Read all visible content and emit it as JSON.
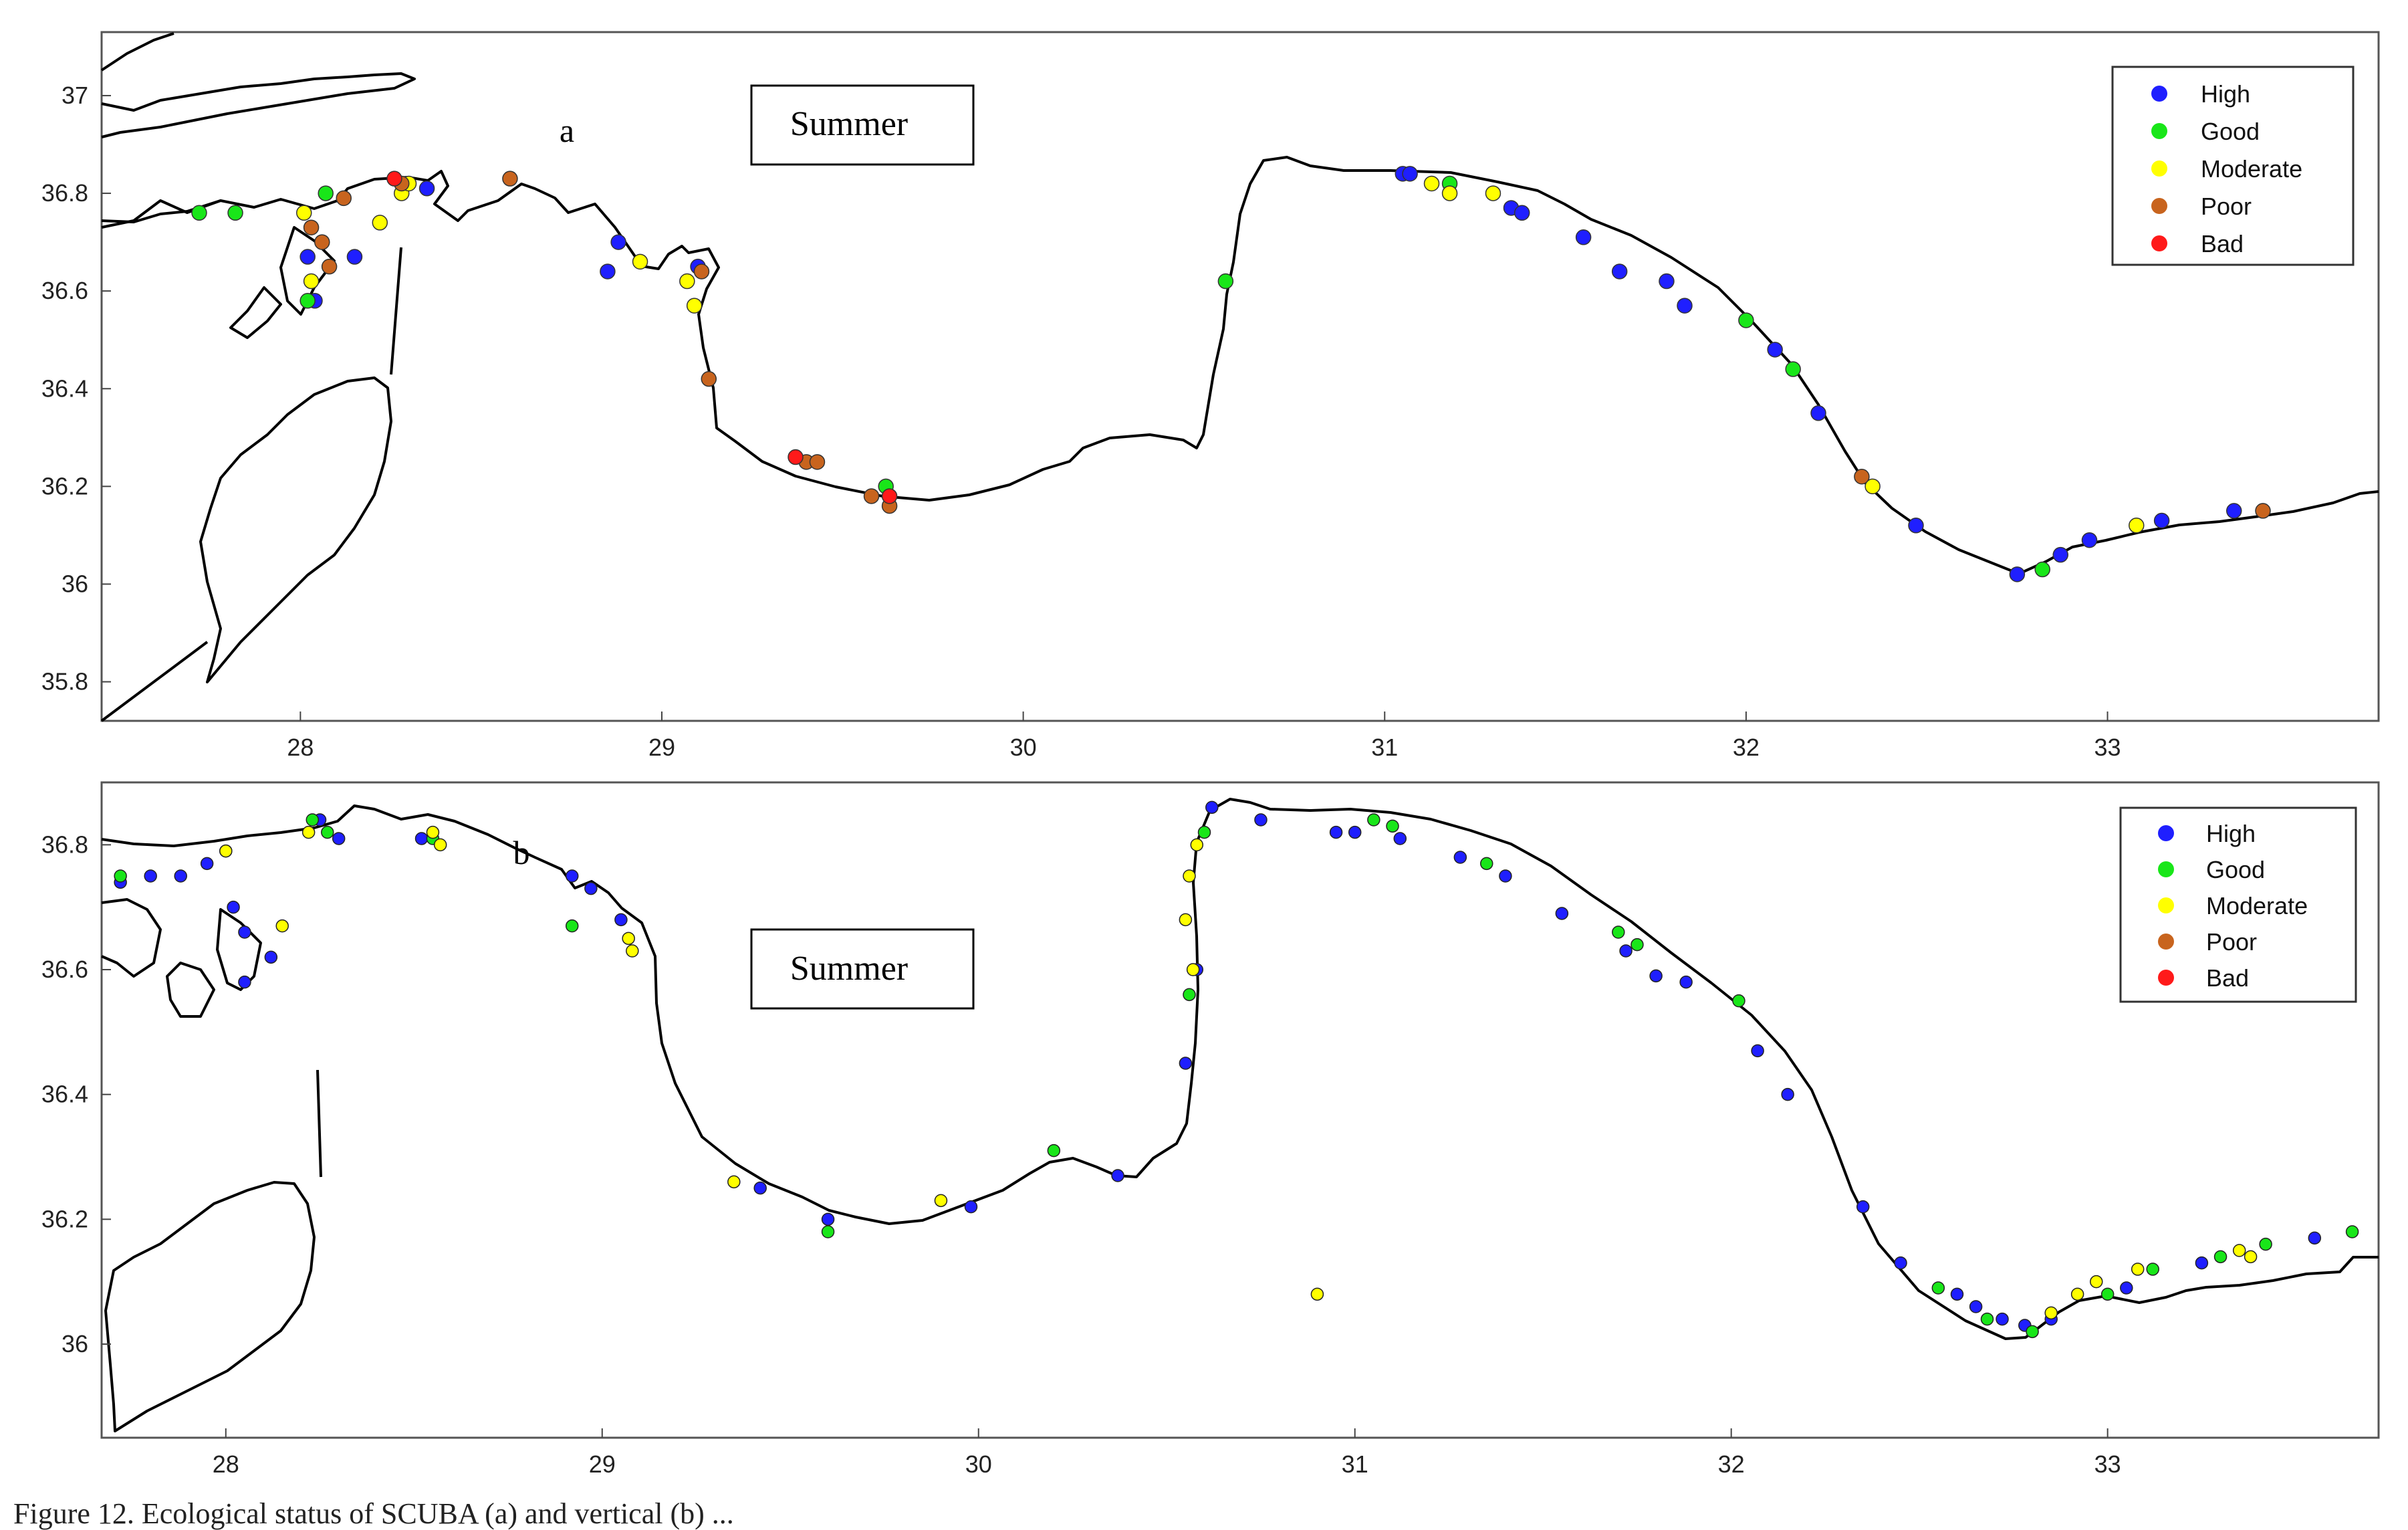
{
  "figure": {
    "caption_fragment": "Figure 12. Ecological status of SCUBA (a) and vertical (b) ..."
  },
  "colors": {
    "High": "#1f1fff",
    "Good": "#19e619",
    "Moderate": "#ffff00",
    "Poor": "#c8641e",
    "Bad": "#ff1a1a",
    "coast": "#000000"
  },
  "legend": {
    "items": [
      "High",
      "Good",
      "Moderate",
      "Poor",
      "Bad"
    ]
  },
  "panels": [
    {
      "id": "a",
      "letter": "a",
      "season": "Summer",
      "x_ticks": [
        28,
        29,
        30,
        31,
        32,
        33
      ],
      "y_ticks": [
        35.8,
        36,
        36.2,
        36.4,
        36.6,
        36.8,
        37
      ],
      "xlim": [
        27.45,
        33.75
      ],
      "ylim": [
        35.72,
        37.13
      ]
    },
    {
      "id": "b",
      "letter": "b",
      "season": "Summer",
      "x_ticks": [
        28,
        29,
        30,
        31,
        32,
        33
      ],
      "y_ticks": [
        36,
        36.2,
        36.4,
        36.6,
        36.8
      ],
      "xlim": [
        27.67,
        33.72
      ],
      "ylim": [
        35.85,
        36.9
      ]
    }
  ],
  "chart_data": [
    {
      "type": "scatter",
      "panel": "a",
      "title": "Summer",
      "xlim": [
        27.45,
        33.75
      ],
      "ylim": [
        35.72,
        37.13
      ],
      "series": [
        {
          "name": "High",
          "points": [
            [
              28.02,
              36.67
            ],
            [
              28.04,
              36.58
            ],
            [
              28.15,
              36.67
            ],
            [
              28.35,
              36.81
            ],
            [
              28.88,
              36.7
            ],
            [
              28.85,
              36.64
            ],
            [
              29.1,
              36.65
            ],
            [
              31.05,
              36.84
            ],
            [
              31.07,
              36.84
            ],
            [
              31.35,
              36.77
            ],
            [
              31.38,
              36.76
            ],
            [
              31.55,
              36.71
            ],
            [
              31.65,
              36.64
            ],
            [
              31.78,
              36.62
            ],
            [
              31.83,
              36.57
            ],
            [
              32.08,
              36.48
            ],
            [
              32.2,
              36.35
            ],
            [
              32.47,
              36.12
            ],
            [
              32.75,
              36.02
            ],
            [
              32.87,
              36.06
            ],
            [
              32.95,
              36.09
            ],
            [
              33.15,
              36.13
            ],
            [
              33.35,
              36.15
            ]
          ]
        },
        {
          "name": "Good",
          "points": [
            [
              27.72,
              36.76
            ],
            [
              27.82,
              36.76
            ],
            [
              28.02,
              36.58
            ],
            [
              28.07,
              36.8
            ],
            [
              29.62,
              36.2
            ],
            [
              30.56,
              36.62
            ],
            [
              31.18,
              36.82
            ],
            [
              32.0,
              36.54
            ],
            [
              32.13,
              36.44
            ],
            [
              32.82,
              36.03
            ]
          ]
        },
        {
          "name": "Moderate",
          "points": [
            [
              28.01,
              36.76
            ],
            [
              28.03,
              36.62
            ],
            [
              28.22,
              36.74
            ],
            [
              28.28,
              36.8
            ],
            [
              28.3,
              36.82
            ],
            [
              28.94,
              36.66
            ],
            [
              29.07,
              36.62
            ],
            [
              29.09,
              36.57
            ],
            [
              31.13,
              36.82
            ],
            [
              31.18,
              36.8
            ],
            [
              31.3,
              36.8
            ],
            [
              32.35,
              36.2
            ],
            [
              33.08,
              36.12
            ]
          ]
        },
        {
          "name": "Poor",
          "points": [
            [
              28.03,
              36.73
            ],
            [
              28.06,
              36.7
            ],
            [
              28.08,
              36.65
            ],
            [
              28.12,
              36.79
            ],
            [
              28.28,
              36.82
            ],
            [
              28.58,
              36.83
            ],
            [
              29.11,
              36.64
            ],
            [
              29.13,
              36.42
            ],
            [
              29.4,
              36.25
            ],
            [
              29.43,
              36.25
            ],
            [
              29.58,
              36.18
            ],
            [
              29.63,
              36.16
            ],
            [
              32.32,
              36.22
            ],
            [
              33.43,
              36.15
            ]
          ]
        },
        {
          "name": "Bad",
          "points": [
            [
              28.26,
              36.83
            ],
            [
              29.37,
              36.26
            ],
            [
              29.63,
              36.18
            ]
          ]
        }
      ]
    },
    {
      "type": "scatter",
      "panel": "b",
      "title": "Summer",
      "xlim": [
        27.67,
        33.72
      ],
      "ylim": [
        35.85,
        36.9
      ],
      "series": [
        {
          "name": "High",
          "points": [
            [
              27.72,
              36.74
            ],
            [
              27.8,
              36.75
            ],
            [
              27.88,
              36.75
            ],
            [
              27.95,
              36.77
            ],
            [
              28.0,
              36.79
            ],
            [
              28.02,
              36.7
            ],
            [
              28.05,
              36.66
            ],
            [
              28.05,
              36.58
            ],
            [
              28.12,
              36.62
            ],
            [
              28.25,
              36.84
            ],
            [
              28.3,
              36.81
            ],
            [
              28.52,
              36.81
            ],
            [
              28.92,
              36.75
            ],
            [
              28.97,
              36.73
            ],
            [
              29.05,
              36.68
            ],
            [
              29.42,
              36.25
            ],
            [
              29.6,
              36.2
            ],
            [
              29.98,
              36.22
            ],
            [
              30.37,
              36.27
            ],
            [
              30.55,
              36.45
            ],
            [
              30.58,
              36.6
            ],
            [
              30.62,
              36.86
            ],
            [
              30.75,
              36.84
            ],
            [
              30.95,
              36.82
            ],
            [
              31.0,
              36.82
            ],
            [
              31.12,
              36.81
            ],
            [
              31.28,
              36.78
            ],
            [
              31.4,
              36.75
            ],
            [
              31.55,
              36.69
            ],
            [
              31.72,
              36.63
            ],
            [
              31.8,
              36.59
            ],
            [
              31.88,
              36.58
            ],
            [
              32.07,
              36.47
            ],
            [
              32.15,
              36.4
            ],
            [
              32.35,
              36.22
            ],
            [
              32.45,
              36.13
            ],
            [
              32.6,
              36.08
            ],
            [
              32.65,
              36.06
            ],
            [
              32.72,
              36.04
            ],
            [
              32.78,
              36.03
            ],
            [
              32.85,
              36.04
            ],
            [
              33.05,
              36.09
            ],
            [
              33.25,
              36.13
            ],
            [
              33.55,
              36.17
            ]
          ]
        },
        {
          "name": "Good",
          "points": [
            [
              27.72,
              36.75
            ],
            [
              28.23,
              36.84
            ],
            [
              28.27,
              36.82
            ],
            [
              28.55,
              36.81
            ],
            [
              28.92,
              36.67
            ],
            [
              29.6,
              36.18
            ],
            [
              30.2,
              36.31
            ],
            [
              30.56,
              36.56
            ],
            [
              30.6,
              36.82
            ],
            [
              31.05,
              36.84
            ],
            [
              31.1,
              36.83
            ],
            [
              31.35,
              36.77
            ],
            [
              31.7,
              36.66
            ],
            [
              31.75,
              36.64
            ],
            [
              32.02,
              36.55
            ],
            [
              32.55,
              36.09
            ],
            [
              32.68,
              36.04
            ],
            [
              32.8,
              36.02
            ],
            [
              33.0,
              36.08
            ],
            [
              33.12,
              36.12
            ],
            [
              33.3,
              36.14
            ],
            [
              33.42,
              36.16
            ],
            [
              33.65,
              36.18
            ]
          ]
        },
        {
          "name": "Moderate",
          "points": [
            [
              28.0,
              36.79
            ],
            [
              28.15,
              36.67
            ],
            [
              28.22,
              36.82
            ],
            [
              28.55,
              36.82
            ],
            [
              28.57,
              36.8
            ],
            [
              29.07,
              36.65
            ],
            [
              29.08,
              36.63
            ],
            [
              29.35,
              36.26
            ],
            [
              29.9,
              36.23
            ],
            [
              30.55,
              36.68
            ],
            [
              30.56,
              36.75
            ],
            [
              30.57,
              36.6
            ],
            [
              30.58,
              36.8
            ],
            [
              30.9,
              36.08
            ],
            [
              32.85,
              36.05
            ],
            [
              32.92,
              36.08
            ],
            [
              32.97,
              36.1
            ],
            [
              33.08,
              36.12
            ],
            [
              33.35,
              36.15
            ],
            [
              33.38,
              36.14
            ]
          ]
        },
        {
          "name": "Poor",
          "points": []
        },
        {
          "name": "Bad",
          "points": []
        }
      ]
    }
  ]
}
